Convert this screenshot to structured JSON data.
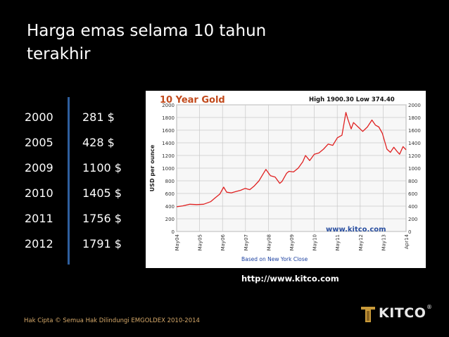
{
  "slide": {
    "title_line1": "Harga emas selama 10 tahun",
    "title_line2": "terakhir",
    "source_url": "http://www.kitco.com",
    "footer": "Hak Cipta © Semua Hak Dilindungi EMGOLDEX 2010-2014",
    "logo_text": "KITCO",
    "logo_mark": "®"
  },
  "price_table": [
    {
      "year": "2000",
      "price": "281 $"
    },
    {
      "year": "2005",
      "price": "428 $"
    },
    {
      "year": "2009",
      "price": "1100 $"
    },
    {
      "year": "2010",
      "price": "1405 $"
    },
    {
      "year": "2011",
      "price": "1756 $"
    },
    {
      "year": "2012",
      "price": "1791 $"
    }
  ],
  "chart_data": {
    "type": "line",
    "title": "10 Year Gold",
    "stats_text": "High 1900.30 Low 374.40",
    "ylabel": "USD per ounce",
    "footnote": "Based on New York Close",
    "watermark": "www.kitco.com",
    "ylim": [
      0,
      2000
    ],
    "y_ticks": [
      0,
      200,
      400,
      600,
      800,
      1000,
      1200,
      1400,
      1600,
      1800,
      2000
    ],
    "x_ticks": [
      "May04",
      "May05",
      "May06",
      "May07",
      "May08",
      "May09",
      "May10",
      "May11",
      "May12",
      "May13",
      "Apr14"
    ],
    "grid": true,
    "line_color": "#e02020",
    "series": [
      {
        "x": [
          2004.33,
          2004.6,
          2004.9,
          2005.2,
          2005.5,
          2005.8,
          2006.0,
          2006.2,
          2006.37,
          2006.5,
          2006.7,
          2006.9,
          2007.1,
          2007.3,
          2007.5,
          2007.7,
          2007.9,
          2008.1,
          2008.2,
          2008.4,
          2008.6,
          2008.8,
          2008.9,
          2009.1,
          2009.2,
          2009.4,
          2009.6,
          2009.8,
          2009.92,
          2010.1,
          2010.3,
          2010.5,
          2010.7,
          2010.9,
          2011.1,
          2011.3,
          2011.5,
          2011.67,
          2011.75,
          2011.9,
          2012.0,
          2012.2,
          2012.4,
          2012.6,
          2012.8,
          2012.95,
          2013.1,
          2013.25,
          2013.45,
          2013.6,
          2013.75,
          2013.9,
          2014.0,
          2014.15,
          2014.28
        ],
        "values": [
          390,
          405,
          430,
          425,
          430,
          470,
          530,
          590,
          700,
          620,
          610,
          630,
          650,
          680,
          660,
          720,
          800,
          920,
          980,
          880,
          860,
          760,
          790,
          920,
          950,
          940,
          1000,
          1100,
          1200,
          1120,
          1220,
          1240,
          1300,
          1380,
          1360,
          1480,
          1520,
          1880,
          1780,
          1620,
          1720,
          1650,
          1580,
          1650,
          1760,
          1680,
          1650,
          1550,
          1300,
          1250,
          1330,
          1260,
          1220,
          1340,
          1290
        ]
      }
    ]
  }
}
